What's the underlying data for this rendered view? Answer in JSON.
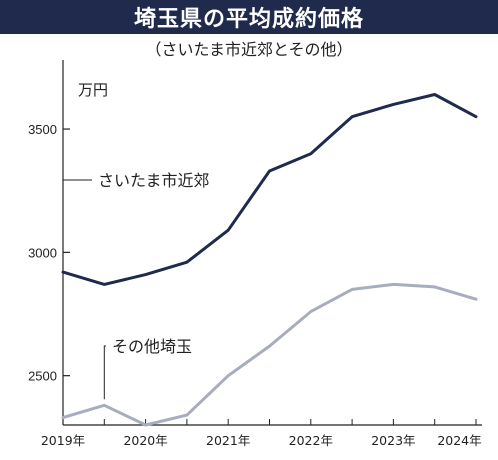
{
  "header": {
    "title": "埼玉県の平均成約価格",
    "subtitle": "（さいたま市近郊とその他）"
  },
  "chart_data": {
    "type": "line",
    "unit_label": "万円",
    "ylim": [
      2300,
      3780
    ],
    "yticks": [
      2500,
      3000,
      3500
    ],
    "xlim": [
      0,
      25
    ],
    "x_tick_labels": [
      {
        "label": "2019年",
        "pos": 0
      },
      {
        "label": "2020年",
        "pos": 5
      },
      {
        "label": "2021年",
        "pos": 10
      },
      {
        "label": "2022年",
        "pos": 15
      },
      {
        "label": "2023年",
        "pos": 20
      },
      {
        "label": "2024年",
        "pos": 24
      }
    ],
    "x": [
      0,
      2.5,
      5,
      7.5,
      10,
      12.5,
      15,
      17.5,
      20,
      22.5,
      25
    ],
    "series": [
      {
        "name": "さいたま市近郊",
        "color": "#1f2a4d",
        "values": [
          2920,
          2870,
          2910,
          2960,
          3090,
          3330,
          3400,
          3550,
          3600,
          3640,
          3550
        ]
      },
      {
        "name": "その他埼玉",
        "color": "#a7adbd",
        "values": [
          2330,
          2380,
          2300,
          2340,
          2500,
          2620,
          2760,
          2850,
          2870,
          2860,
          2810
        ]
      }
    ],
    "grid": false
  }
}
